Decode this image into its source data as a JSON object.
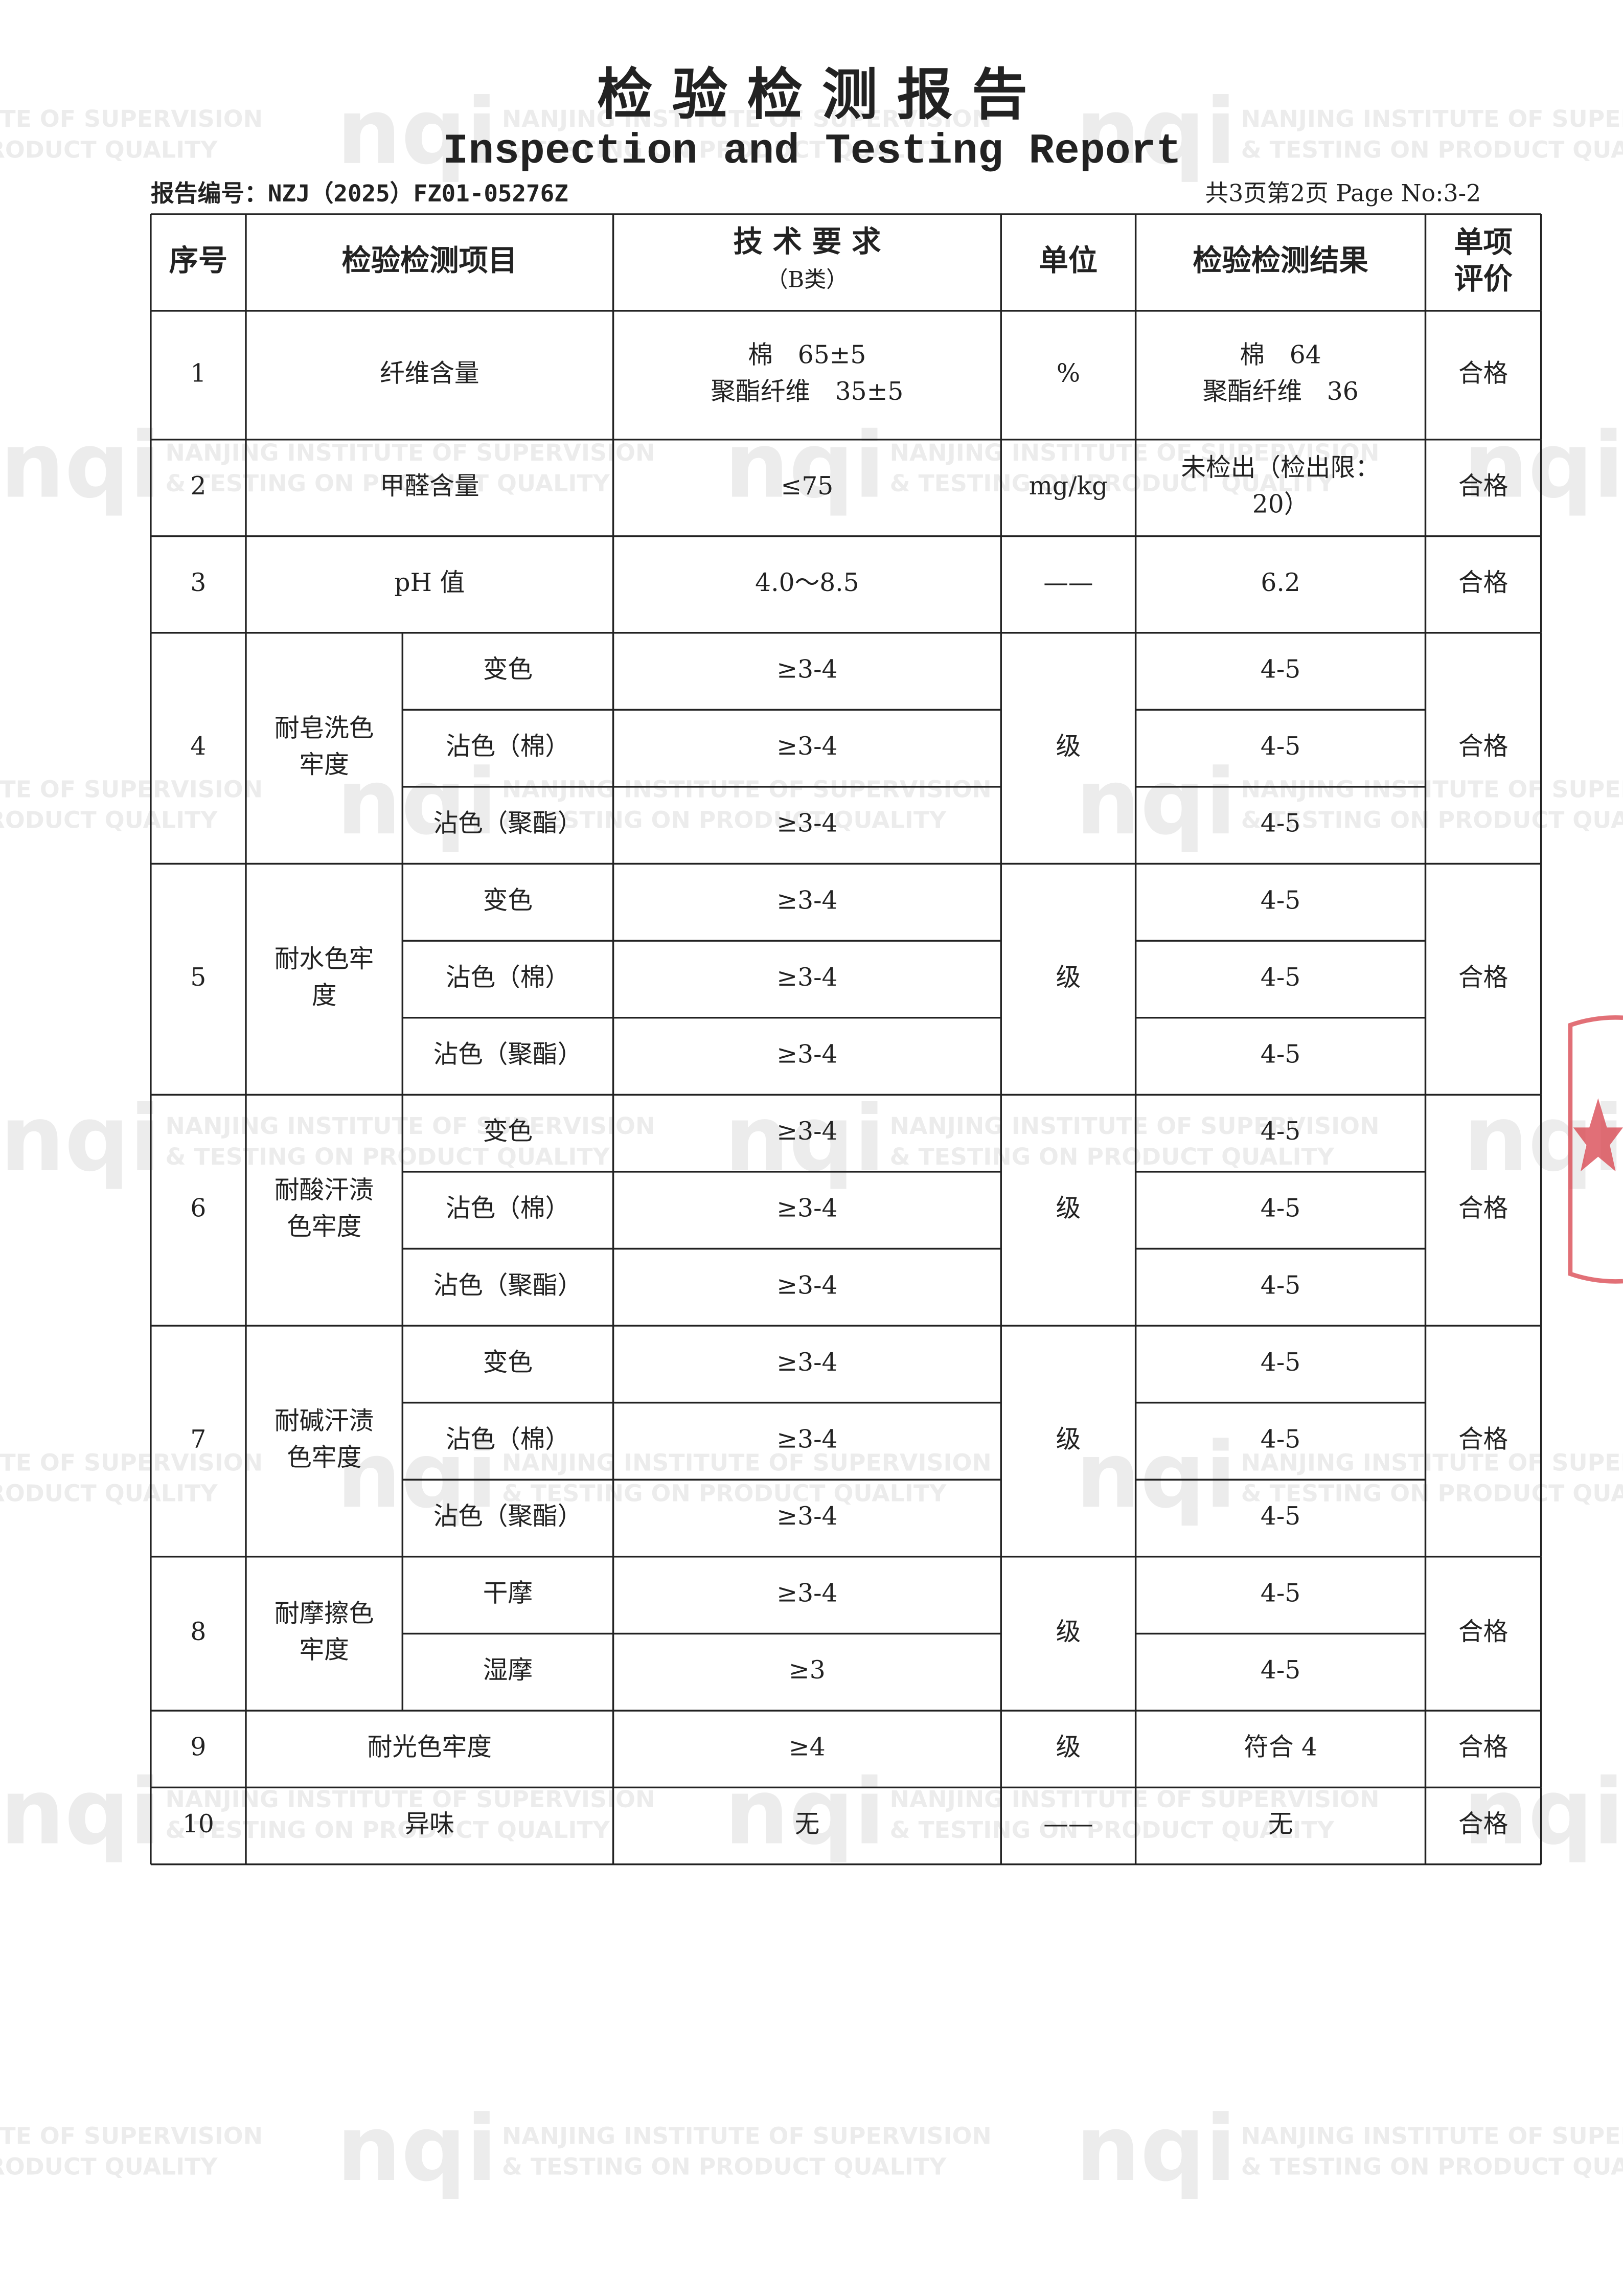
{
  "header": {
    "title_cn": "检 验 检 测 报 告",
    "title_en": "Inspection and Testing Report",
    "report_no": "报告编号：NZJ（2025）FZ01-05276Z",
    "page_info": "共3页第2页 Page No:3-2"
  },
  "watermark": {
    "logo": "nqi",
    "line1": "NANJING INSTITUTE OF SUPERVISION",
    "line2": "& TESTING ON PRODUCT QUALITY"
  },
  "table": {
    "headers": {
      "no": [
        "序号"
      ],
      "item": [
        "检验检测项目"
      ],
      "requirement": [
        "技 术 要 求",
        "（B类）"
      ],
      "unit": [
        "单位"
      ],
      "result": [
        "检验检测结果"
      ],
      "verdict": [
        "单项",
        "评价"
      ]
    },
    "rows": [
      {
        "no": "1",
        "item": [
          "纤维含量"
        ],
        "requirement": [
          "棉　65±5",
          "聚酯纤维　35±5"
        ],
        "unit": "%",
        "result": [
          "棉　64",
          "聚酯纤维　36"
        ],
        "verdict": "合格"
      },
      {
        "no": "2",
        "item": [
          "甲醛含量"
        ],
        "requirement": [
          "≤75"
        ],
        "unit": "mg/kg",
        "result": [
          "未检出（检出限：",
          "20）"
        ],
        "verdict": "合格"
      },
      {
        "no": "3",
        "item": [
          "pH 值"
        ],
        "requirement": [
          "4.0～8.5"
        ],
        "unit": "——",
        "result": [
          "6.2"
        ],
        "verdict": "合格"
      },
      {
        "no": "4",
        "item": [
          "耐皂洗色",
          "牢度"
        ],
        "sub": [
          {
            "name": "变色",
            "requirement": "≥3-4",
            "result": "4-5"
          },
          {
            "name": "沾色（棉）",
            "requirement": "≥3-4",
            "result": "4-5"
          },
          {
            "name": "沾色（聚酯）",
            "requirement": "≥3-4",
            "result": "4-5"
          }
        ],
        "unit": "级",
        "verdict": "合格"
      },
      {
        "no": "5",
        "item": [
          "耐水色牢",
          "度"
        ],
        "sub": [
          {
            "name": "变色",
            "requirement": "≥3-4",
            "result": "4-5"
          },
          {
            "name": "沾色（棉）",
            "requirement": "≥3-4",
            "result": "4-5"
          },
          {
            "name": "沾色（聚酯）",
            "requirement": "≥3-4",
            "result": "4-5"
          }
        ],
        "unit": "级",
        "verdict": "合格"
      },
      {
        "no": "6",
        "item": [
          "耐酸汗渍",
          "色牢度"
        ],
        "sub": [
          {
            "name": "变色",
            "requirement": "≥3-4",
            "result": "4-5"
          },
          {
            "name": "沾色（棉）",
            "requirement": "≥3-4",
            "result": "4-5"
          },
          {
            "name": "沾色（聚酯）",
            "requirement": "≥3-4",
            "result": "4-5"
          }
        ],
        "unit": "级",
        "verdict": "合格"
      },
      {
        "no": "7",
        "item": [
          "耐碱汗渍",
          "色牢度"
        ],
        "sub": [
          {
            "name": "变色",
            "requirement": "≥3-4",
            "result": "4-5"
          },
          {
            "name": "沾色（棉）",
            "requirement": "≥3-4",
            "result": "4-5"
          },
          {
            "name": "沾色（聚酯）",
            "requirement": "≥3-4",
            "result": "4-5"
          }
        ],
        "unit": "级",
        "verdict": "合格"
      },
      {
        "no": "8",
        "item": [
          "耐摩擦色",
          "牢度"
        ],
        "sub": [
          {
            "name": "干摩",
            "requirement": "≥3-4",
            "result": "4-5"
          },
          {
            "name": "湿摩",
            "requirement": "≥3",
            "result": "4-5"
          }
        ],
        "unit": "级",
        "verdict": "合格"
      },
      {
        "no": "9",
        "item": [
          "耐光色牢度"
        ],
        "requirement": [
          "≥4"
        ],
        "unit": "级",
        "result": [
          "符合 4"
        ],
        "verdict": "合格"
      },
      {
        "no": "10",
        "item": [
          "异味"
        ],
        "requirement": [
          "无"
        ],
        "unit": "——",
        "result": [
          "无"
        ],
        "verdict": "合格"
      }
    ]
  }
}
